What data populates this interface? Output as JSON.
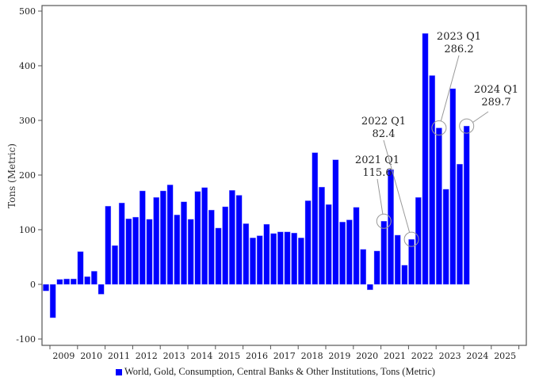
{
  "chart_data": {
    "type": "bar",
    "title": "",
    "xlabel": "",
    "ylabel": "Tons (Metric)",
    "ylim": [
      -100,
      500
    ],
    "yticks": [
      -100,
      0,
      100,
      200,
      300,
      400,
      500
    ],
    "xtick_labels": [
      "2009",
      "2010",
      "2011",
      "2012",
      "2013",
      "2014",
      "2015",
      "2016",
      "2017",
      "2018",
      "2019",
      "2020",
      "2021",
      "2022",
      "2023",
      "2024",
      "2025"
    ],
    "grid": false,
    "legend_position": "bottom",
    "series": [
      {
        "name": "World, Gold, Consumption, Central Banks & Other Institutions, Tons (Metric)",
        "color": "#0000ff",
        "categories": [
          "2008 Q4",
          "2009 Q1",
          "2009 Q2",
          "2009 Q3",
          "2009 Q4",
          "2010 Q1",
          "2010 Q2",
          "2010 Q3",
          "2010 Q4",
          "2011 Q1",
          "2011 Q2",
          "2011 Q3",
          "2011 Q4",
          "2012 Q1",
          "2012 Q2",
          "2012 Q3",
          "2012 Q4",
          "2013 Q1",
          "2013 Q2",
          "2013 Q3",
          "2013 Q4",
          "2014 Q1",
          "2014 Q2",
          "2014 Q3",
          "2014 Q4",
          "2015 Q1",
          "2015 Q2",
          "2015 Q3",
          "2015 Q4",
          "2016 Q1",
          "2016 Q2",
          "2016 Q3",
          "2016 Q4",
          "2017 Q1",
          "2017 Q2",
          "2017 Q3",
          "2017 Q4",
          "2018 Q1",
          "2018 Q2",
          "2018 Q3",
          "2018 Q4",
          "2019 Q1",
          "2019 Q2",
          "2019 Q3",
          "2019 Q4",
          "2020 Q1",
          "2020 Q2",
          "2020 Q3",
          "2020 Q4",
          "2021 Q1",
          "2021 Q2",
          "2021 Q3",
          "2021 Q4",
          "2022 Q1",
          "2022 Q2",
          "2022 Q3",
          "2022 Q4",
          "2023 Q1",
          "2023 Q2",
          "2023 Q3",
          "2023 Q4",
          "2024 Q1"
        ],
        "values": [
          -12,
          -61,
          9,
          10,
          10,
          60,
          14,
          24,
          -18,
          143,
          71,
          149,
          120,
          123,
          171,
          119,
          159,
          171,
          182,
          127,
          151,
          119,
          170,
          177,
          136,
          103,
          142,
          172,
          163,
          111,
          85,
          89,
          110,
          93,
          96,
          96,
          94,
          85,
          153,
          241,
          178,
          146,
          228,
          114,
          118,
          141,
          64,
          -10,
          61,
          115.6,
          210,
          90,
          35,
          82.4,
          159,
          459,
          382,
          286.2,
          174,
          358,
          220,
          289.7
        ]
      }
    ],
    "annotations": [
      {
        "label": "2021 Q1",
        "value_text": "115.6",
        "category": "2021 Q1"
      },
      {
        "label": "2022 Q1",
        "value_text": "82.4",
        "category": "2022 Q1"
      },
      {
        "label": "2023 Q1",
        "value_text": "286.2",
        "category": "2023 Q1"
      },
      {
        "label": "2024 Q1",
        "value_text": "289.7",
        "category": "2024 Q1"
      }
    ]
  }
}
